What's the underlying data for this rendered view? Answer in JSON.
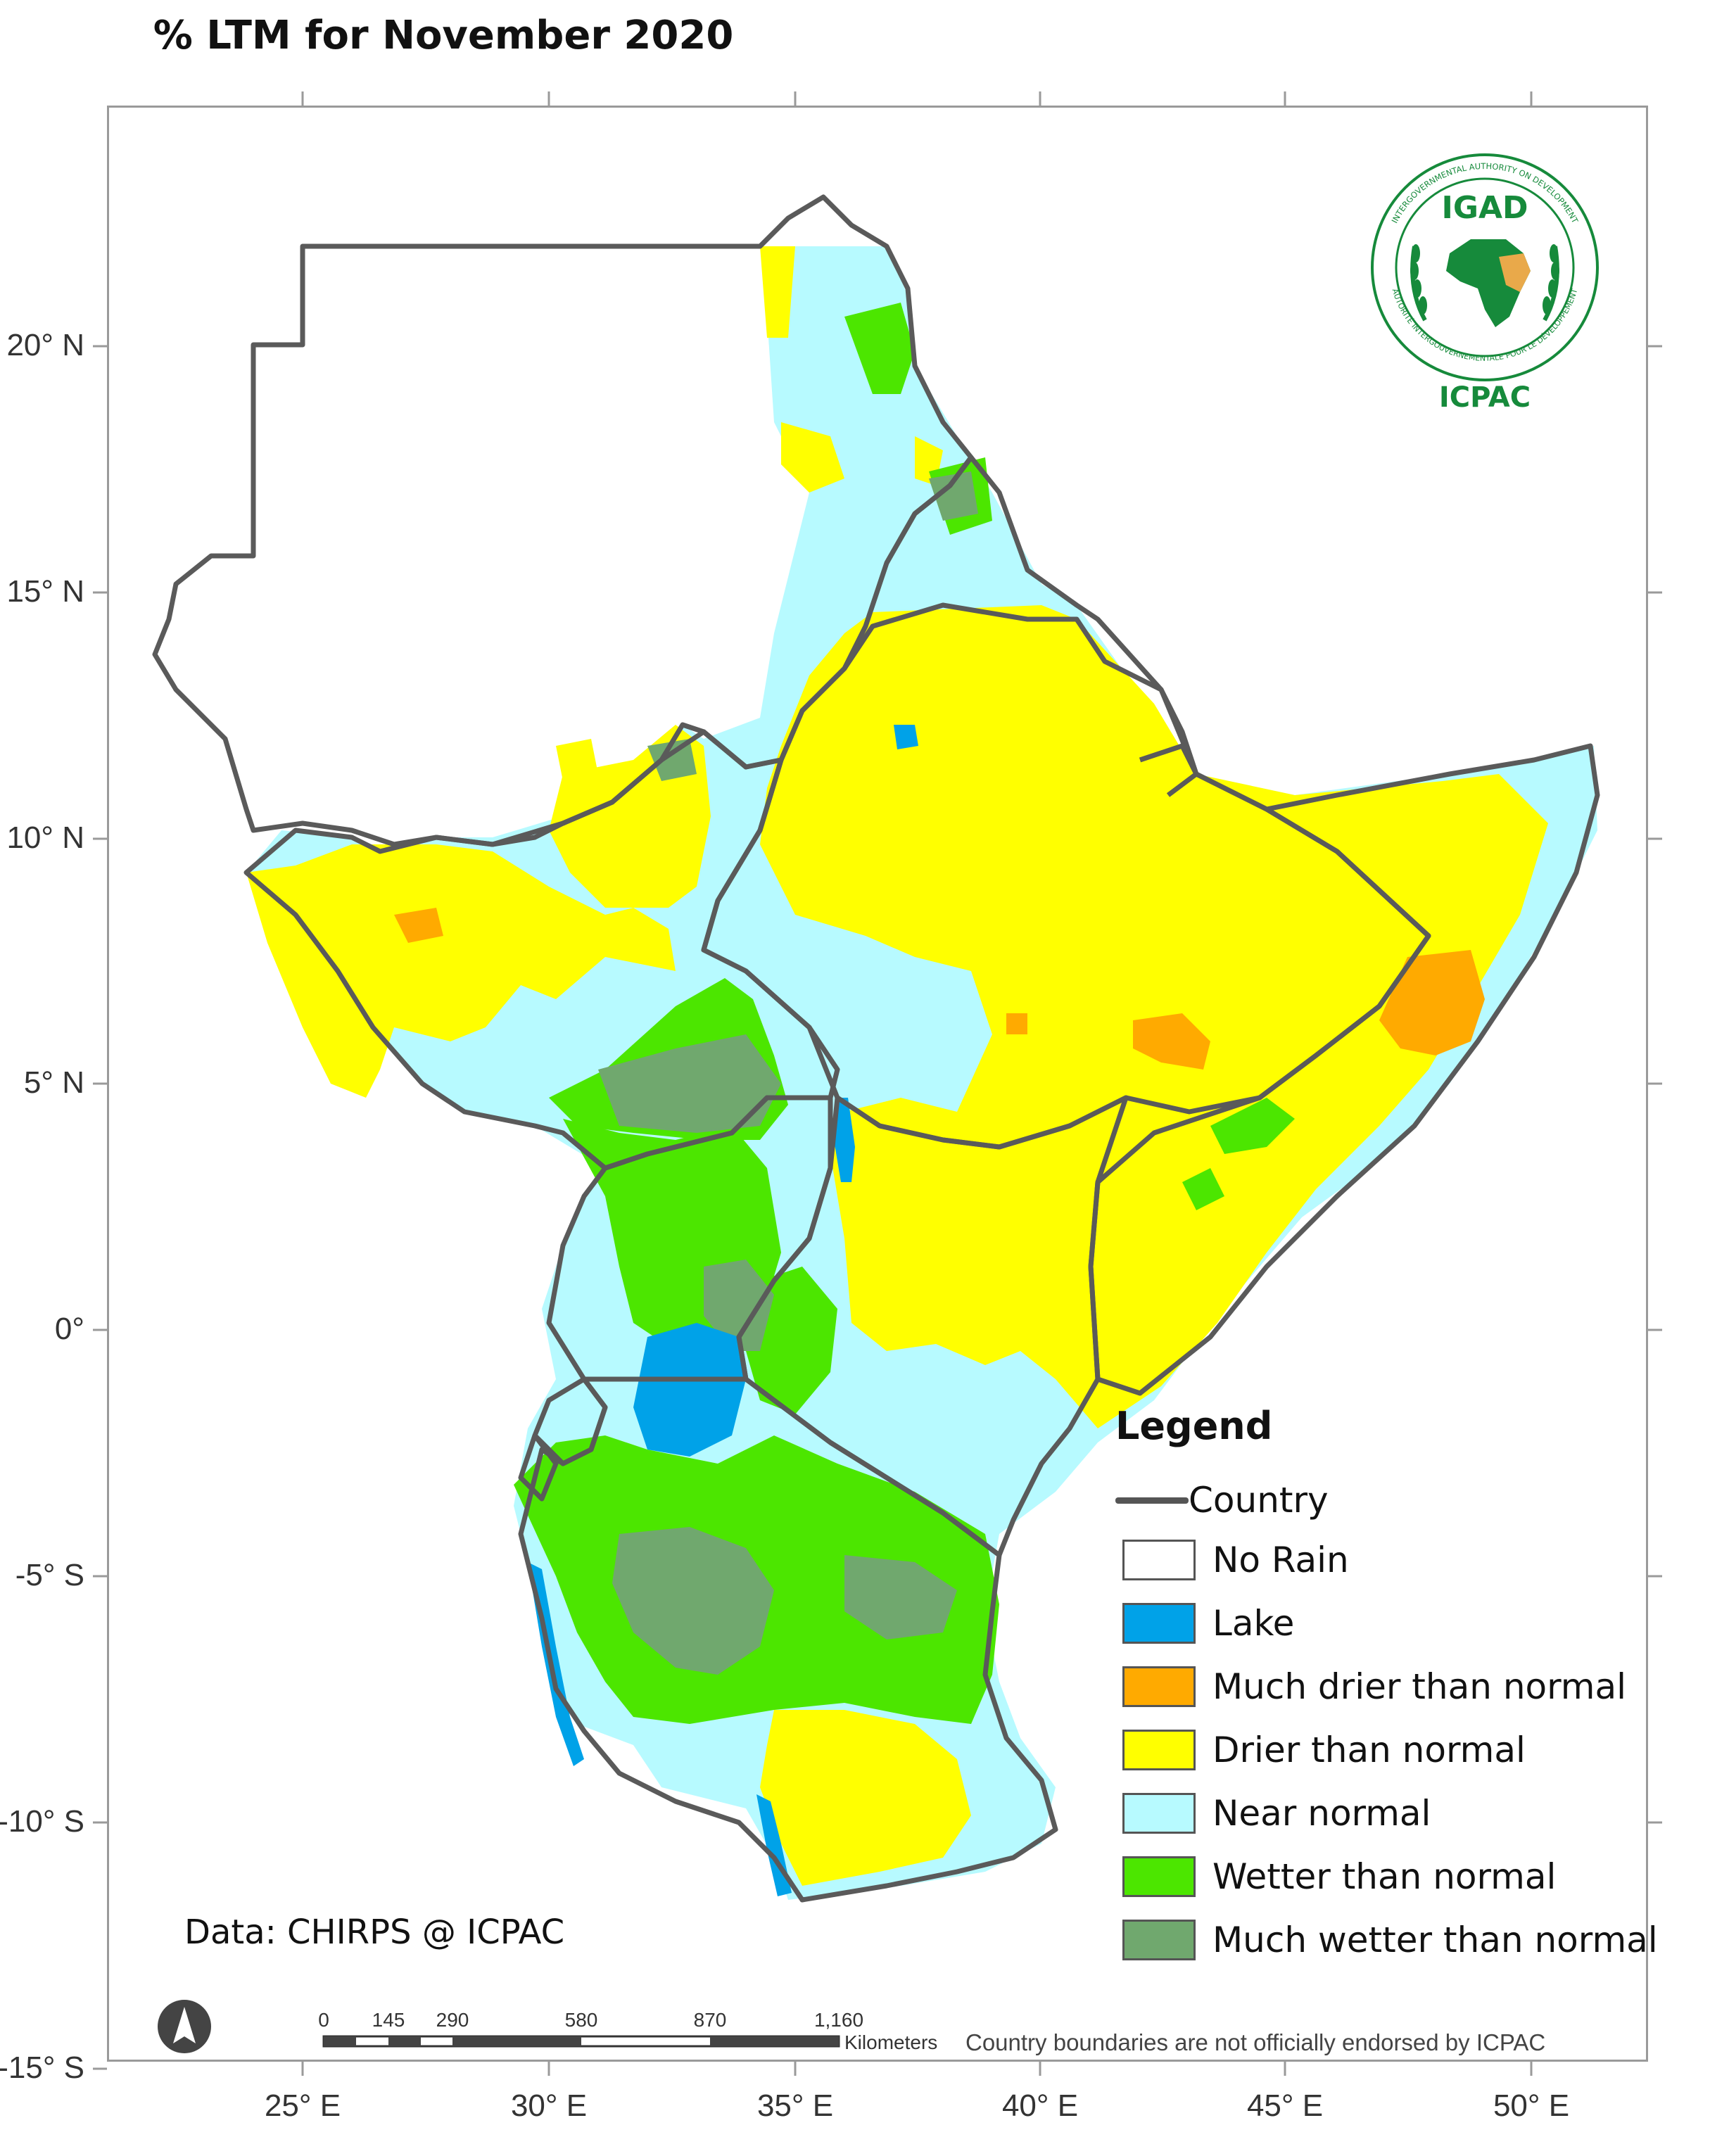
{
  "title": "% LTM  for  November 2020",
  "axes": {
    "lat_labels": [
      "20° N",
      "15° N",
      "10° N",
      "5° N",
      "0°",
      "-5° S",
      "-10° S",
      "-15° S"
    ],
    "lon_labels": [
      "25° E",
      "30° E",
      "35° E",
      "40° E",
      "45° E",
      "50° E"
    ]
  },
  "legend": {
    "title": "Legend",
    "country_label": "Country",
    "items": [
      {
        "label": "No Rain",
        "color": "#ffffff"
      },
      {
        "label": "Lake",
        "color": "#00a2e8"
      },
      {
        "label": "Much drier than normal",
        "color": "#ffaa00"
      },
      {
        "label": "Drier than normal",
        "color": "#ffff00"
      },
      {
        "label": "Near normal",
        "color": "#b7faff"
      },
      {
        "label": "Wetter than normal",
        "color": "#4ce600"
      },
      {
        "label": "Much wetter than normal",
        "color": "#70a86e"
      }
    ]
  },
  "logo": {
    "acronym": "IGAD",
    "ring_text_top": "INTERGOVERNMENTAL AUTHORITY ON DEVELOPMENT",
    "ring_text_bottom": "AUTORITÉ INTERGOUVERNEMENTALE POUR LE DÉVELOPPEMENT",
    "caption": "ICPAC",
    "colors": {
      "green": "#168a3b",
      "orange": "#e9a94a"
    }
  },
  "data_source": "Data: CHIRPS @ ICPAC",
  "scale_bar": {
    "ticks": [
      "0",
      "145",
      "290",
      "580",
      "870",
      "1,160"
    ],
    "unit": "Kilometers"
  },
  "disclaimer": "Country boundaries are not officially endorsed by ICPAC",
  "north_arrow": "north-arrow-icon",
  "boundary_color": "#5a5a5a"
}
